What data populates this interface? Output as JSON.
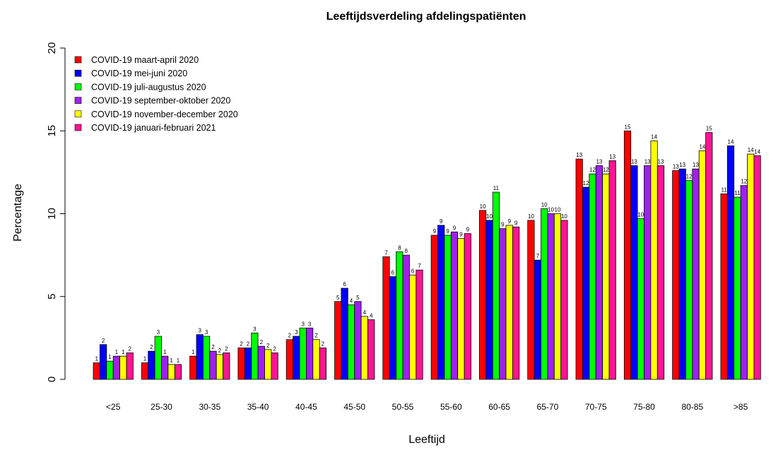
{
  "chart_data": {
    "type": "bar",
    "title": "Leeftijdsverdeling afdelingspatiënten",
    "xlabel": "Leeftijd",
    "ylabel": "Percentage",
    "ylim": [
      0,
      20
    ],
    "yticks": [
      "0",
      "5",
      "10",
      "15",
      "20"
    ],
    "grid": false,
    "legend_position": "top-left",
    "categories": [
      "<25",
      "25-30",
      "30-35",
      "35-40",
      "40-45",
      "45-50",
      "50-55",
      "55-60",
      "60-65",
      "65-70",
      "70-75",
      "75-80",
      "80-85",
      ">85"
    ],
    "series": [
      {
        "name": "COVID-19 maart-april 2020",
        "color": "#ff0000",
        "values": [
          1.0,
          1.0,
          1.4,
          1.9,
          2.4,
          4.7,
          7.4,
          8.7,
          10.2,
          9.6,
          13.3,
          15.0,
          12.6,
          11.2
        ],
        "labels": [
          "1",
          "1",
          "1",
          "2",
          "2",
          "5",
          "7",
          "9",
          "10",
          "10",
          "13",
          "15",
          "13",
          "11"
        ]
      },
      {
        "name": "COVID-19 mei-juni 2020",
        "color": "#0000ff",
        "values": [
          2.1,
          1.7,
          2.7,
          1.9,
          2.6,
          5.5,
          6.2,
          9.3,
          9.6,
          7.2,
          11.6,
          12.9,
          12.7,
          14.1
        ],
        "labels": [
          "2",
          "2",
          "3",
          "2",
          "3",
          "6",
          "6",
          "9",
          "10",
          "7",
          "12",
          "13",
          "13",
          "14"
        ]
      },
      {
        "name": "COVID-19 juli-augustus 2020",
        "color": "#00ff00",
        "values": [
          1.1,
          2.6,
          2.6,
          2.8,
          3.1,
          4.5,
          7.7,
          8.7,
          11.3,
          10.3,
          12.4,
          9.7,
          12.0,
          11.0
        ],
        "labels": [
          "1",
          "3",
          "3",
          "3",
          "3",
          "4",
          "8",
          "9",
          "11",
          "10",
          "12",
          "10",
          "12",
          "11"
        ]
      },
      {
        "name": "COVID-19 september-oktober 2020",
        "color": "#a020f0",
        "values": [
          1.4,
          1.4,
          1.7,
          2.0,
          3.1,
          4.7,
          7.5,
          8.9,
          9.1,
          10.0,
          12.9,
          12.9,
          12.7,
          11.7
        ],
        "labels": [
          "1",
          "1",
          "2",
          "2",
          "3",
          "5",
          "8",
          "9",
          "9",
          "10",
          "13",
          "13",
          "13",
          "12"
        ]
      },
      {
        "name": "COVID-19 november-december 2020",
        "color": "#ffff00",
        "values": [
          1.4,
          0.9,
          1.5,
          1.8,
          2.4,
          3.8,
          6.3,
          8.5,
          9.3,
          10.0,
          12.4,
          14.4,
          13.8,
          13.6
        ],
        "labels": [
          "1",
          "1",
          "2",
          "2",
          "2",
          "4",
          "6",
          "9",
          "9",
          "10",
          "12",
          "14",
          "14",
          "14"
        ]
      },
      {
        "name": "COVID-19 januari-februari 2021",
        "color": "#ff1493",
        "values": [
          1.6,
          0.9,
          1.6,
          1.6,
          1.9,
          3.6,
          6.6,
          8.8,
          9.2,
          9.6,
          13.2,
          12.9,
          14.9,
          13.5
        ],
        "labels": [
          "2",
          "1",
          "2",
          "2",
          "2",
          "4",
          "7",
          "9",
          "9",
          "10",
          "13",
          "13",
          "15",
          "14"
        ]
      }
    ]
  }
}
